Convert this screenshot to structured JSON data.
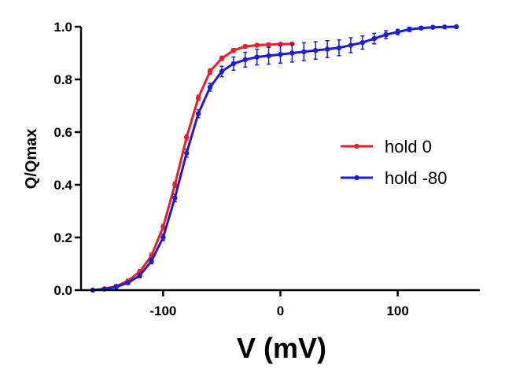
{
  "chart_data": {
    "type": "line",
    "xlabel": "V (mV)",
    "ylabel": "Q/Qmax",
    "xlim": [
      -170,
      170
    ],
    "ylim": [
      0,
      1.0
    ],
    "x_ticks": [
      -100,
      0,
      100
    ],
    "x_tick_labels": [
      "-100",
      "0",
      "100"
    ],
    "y_ticks": [
      0,
      0.2,
      0.4,
      0.6,
      0.8,
      1.0
    ],
    "y_tick_labels": [
      "0.0",
      "0.2",
      "0.4",
      "0.6",
      "0.8",
      "1.0"
    ],
    "grid": false,
    "legend_position": "right",
    "error_bars": true,
    "series": [
      {
        "name": "hold 0",
        "color": "#ee1c25",
        "x": [
          -160,
          -150,
          -140,
          -130,
          -120,
          -110,
          -100,
          -90,
          -80,
          -70,
          -60,
          -50,
          -40,
          -30,
          -20,
          -10,
          0,
          10
        ],
        "y": [
          0.0,
          0.005,
          0.015,
          0.035,
          0.07,
          0.13,
          0.24,
          0.4,
          0.58,
          0.73,
          0.83,
          0.88,
          0.91,
          0.925,
          0.93,
          0.932,
          0.934,
          0.935
        ],
        "err": [
          0.0,
          0.003,
          0.004,
          0.006,
          0.008,
          0.01,
          0.01,
          0.01,
          0.01,
          0.01,
          0.01,
          0.008,
          0.007,
          0.006,
          0.005,
          0.005,
          0.004,
          0.004
        ]
      },
      {
        "name": "hold -80",
        "color": "#1a1adc",
        "x": [
          -160,
          -150,
          -140,
          -130,
          -120,
          -110,
          -100,
          -90,
          -80,
          -70,
          -60,
          -50,
          -40,
          -30,
          -20,
          -10,
          0,
          10,
          20,
          30,
          40,
          50,
          60,
          70,
          80,
          90,
          100,
          110,
          120,
          130,
          140,
          150
        ],
        "y": [
          0.0,
          0.004,
          0.012,
          0.028,
          0.055,
          0.11,
          0.2,
          0.35,
          0.52,
          0.67,
          0.77,
          0.83,
          0.86,
          0.875,
          0.885,
          0.89,
          0.895,
          0.9,
          0.905,
          0.91,
          0.915,
          0.92,
          0.93,
          0.94,
          0.955,
          0.97,
          0.98,
          0.99,
          0.995,
          0.998,
          0.999,
          1.0
        ],
        "err": [
          0.0,
          0.003,
          0.004,
          0.006,
          0.008,
          0.01,
          0.012,
          0.014,
          0.015,
          0.015,
          0.015,
          0.02,
          0.025,
          0.028,
          0.03,
          0.032,
          0.033,
          0.034,
          0.034,
          0.033,
          0.032,
          0.03,
          0.028,
          0.025,
          0.02,
          0.015,
          0.01,
          0.008,
          0.005,
          0.003,
          0.002,
          0.0
        ]
      }
    ]
  }
}
